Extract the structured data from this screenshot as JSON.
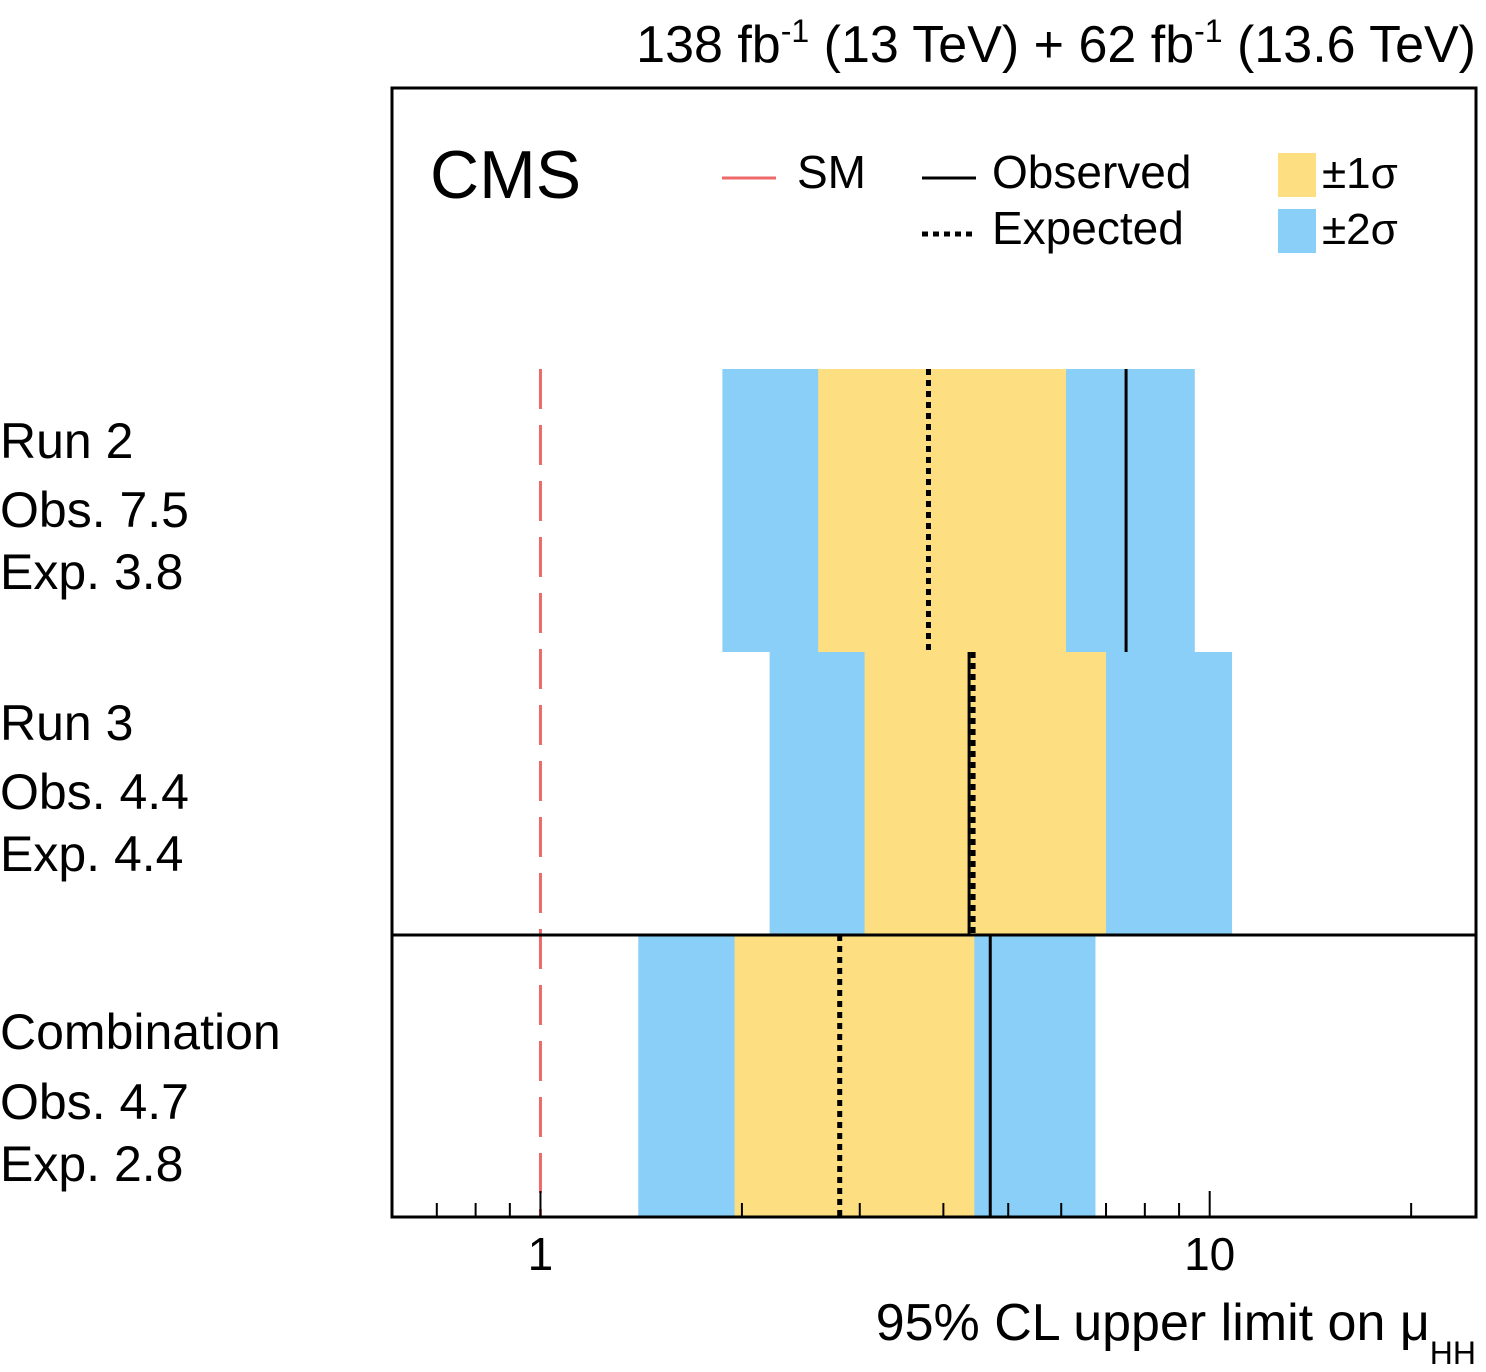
{
  "header": {
    "lumi_run2": "138 fb",
    "lumi_run2_sup": "-1",
    "energy_run2": " (13 TeV) + ",
    "lumi_run3": "62 fb",
    "lumi_run3_sup": "-1",
    "energy_run3": " (13.6 TeV)"
  },
  "experiment_label": "CMS",
  "legend": {
    "sm": "SM",
    "observed": "Observed",
    "expected": "Expected",
    "band1": "±1σ",
    "band2": "±2σ"
  },
  "colors": {
    "band1": "#fddf82",
    "band2": "#89cff7",
    "sm_line": "#ee6a6a",
    "frame": "#000000"
  },
  "chart_data": {
    "type": "limit-bands",
    "xlabel": "95% CL upper limit on μ",
    "xlabel_sub": "HH",
    "x_scale": "log",
    "xlim": [
      0.6,
      25
    ],
    "x_major_ticks": [
      1,
      10
    ],
    "x_tick_labels": [
      "1",
      "10"
    ],
    "sm_value": 1,
    "categories": [
      {
        "name": "Run 2",
        "obs_label": "Obs. 7.5",
        "exp_label": "Exp. 3.8",
        "observed": 7.5,
        "expected": 3.8,
        "band1": [
          2.6,
          6.1
        ],
        "band2": [
          1.87,
          9.5
        ]
      },
      {
        "name": "Run 3",
        "obs_label": "Obs. 4.4",
        "exp_label": "Exp. 4.4",
        "observed": 4.4,
        "expected": 4.4,
        "band1": [
          3.05,
          7.0
        ],
        "band2": [
          2.2,
          10.8
        ]
      },
      {
        "name": "Combination",
        "obs_label": "Obs. 4.7",
        "exp_label": "Exp. 2.8",
        "observed": 4.7,
        "expected": 2.8,
        "band1": [
          1.95,
          4.45
        ],
        "band2": [
          1.4,
          6.75
        ]
      }
    ]
  }
}
